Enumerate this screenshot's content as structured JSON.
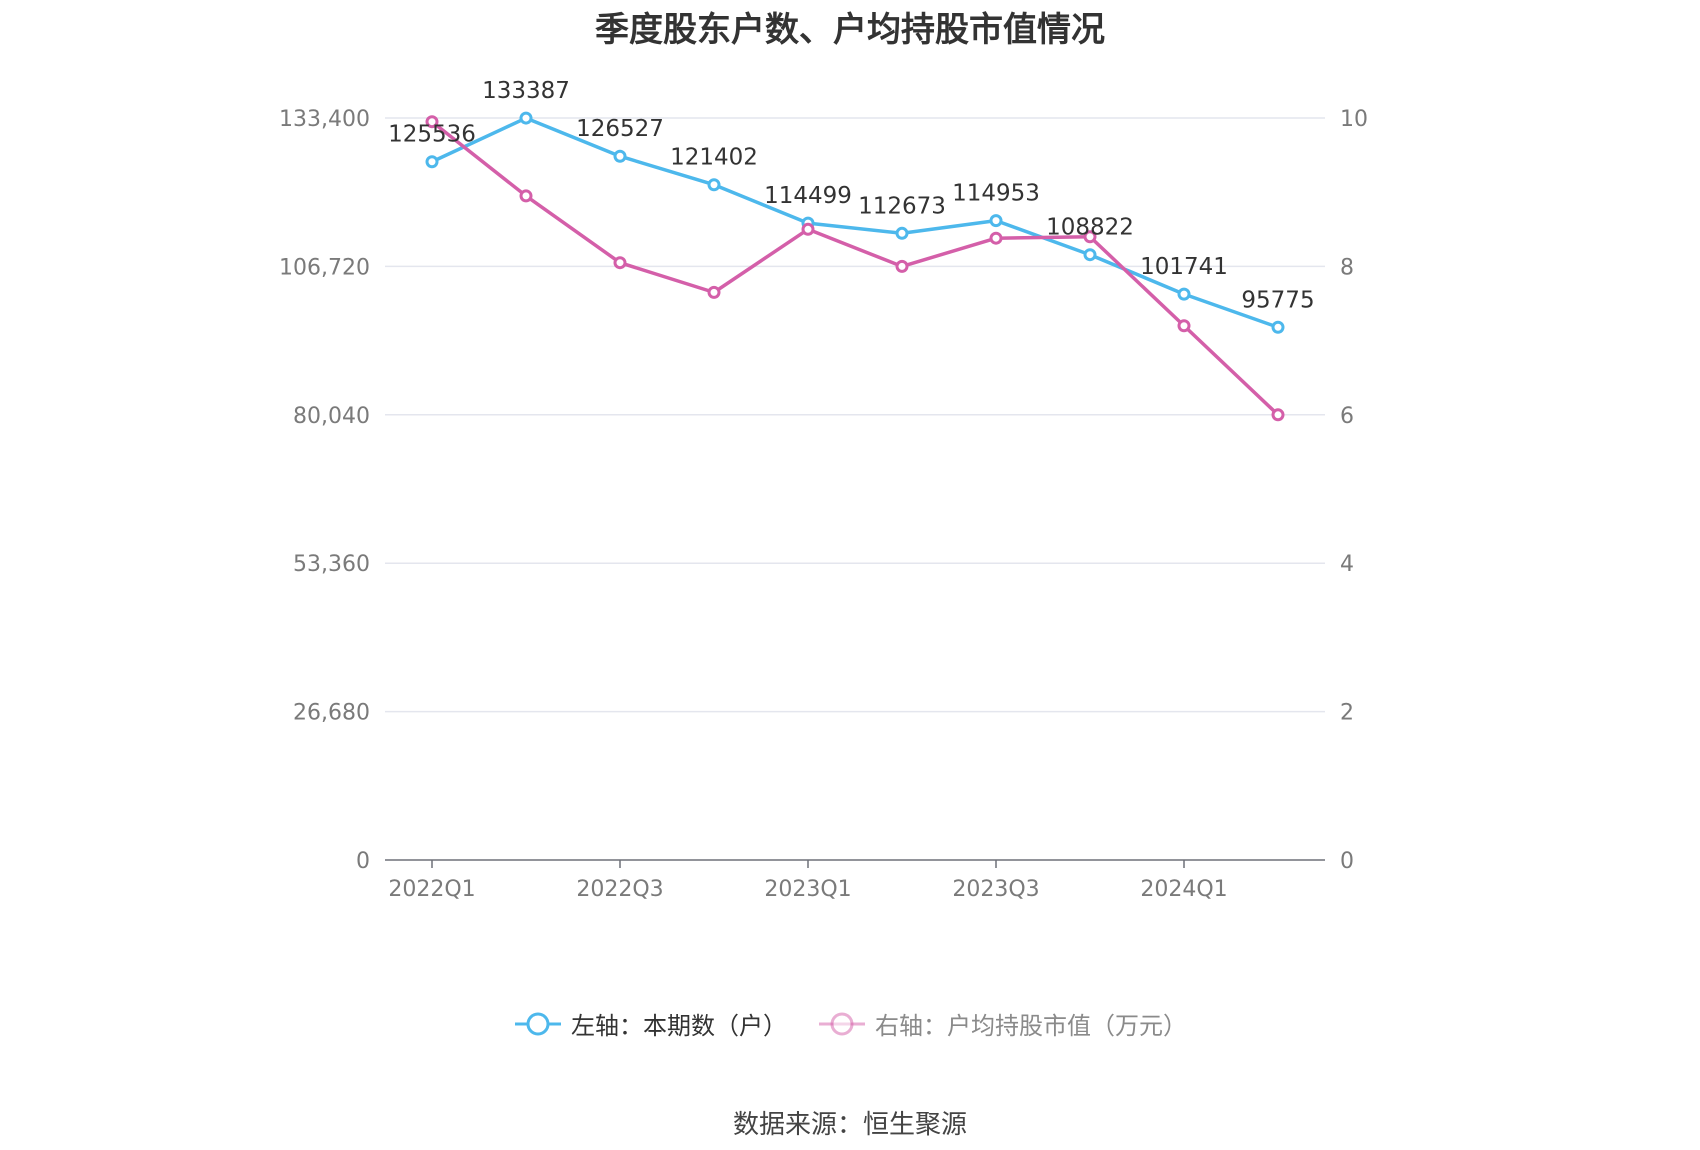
{
  "title": "季度股东户数、户均持股市值情况",
  "source": "数据来源：恒生聚源",
  "colors": {
    "series1": "#4db8ec",
    "series2": "#d45fa9",
    "grid": "#e4e6ee",
    "axis": "#6e7079"
  },
  "chart_data": {
    "type": "line",
    "x": [
      "2022Q1",
      "2022Q2",
      "2022Q3",
      "2022Q4",
      "2023Q1",
      "2023Q2",
      "2023Q3",
      "2023Q4",
      "2024Q1",
      "2024Q2"
    ],
    "x_tick_labels": [
      "2022Q1",
      "2022Q3",
      "2023Q1",
      "2023Q3",
      "2024Q1"
    ],
    "left_axis": {
      "min": 0,
      "max": 133400,
      "ticks": [
        "0",
        "26,680",
        "53,360",
        "80,040",
        "106,720",
        "133,400"
      ]
    },
    "right_axis": {
      "min": 0,
      "max": 10,
      "ticks": [
        "0",
        "2",
        "4",
        "6",
        "8",
        "10"
      ]
    },
    "grid": true,
    "legend_position": "bottom",
    "series": [
      {
        "name": "左轴：本期数（户）",
        "axis": "left",
        "values": [
          125536,
          133387,
          126527,
          121402,
          114499,
          112673,
          114953,
          108822,
          101741,
          95775
        ],
        "labels": [
          "125536",
          "133387",
          "126527",
          "121402",
          "114499",
          "112673",
          "114953",
          "108822",
          "101741",
          "95775"
        ]
      },
      {
        "name": "右轴：户均持股市值（万元）",
        "axis": "right",
        "values": [
          9.95,
          8.95,
          8.05,
          7.65,
          8.5,
          8.0,
          8.38,
          8.4,
          7.2,
          6.0
        ]
      }
    ]
  }
}
